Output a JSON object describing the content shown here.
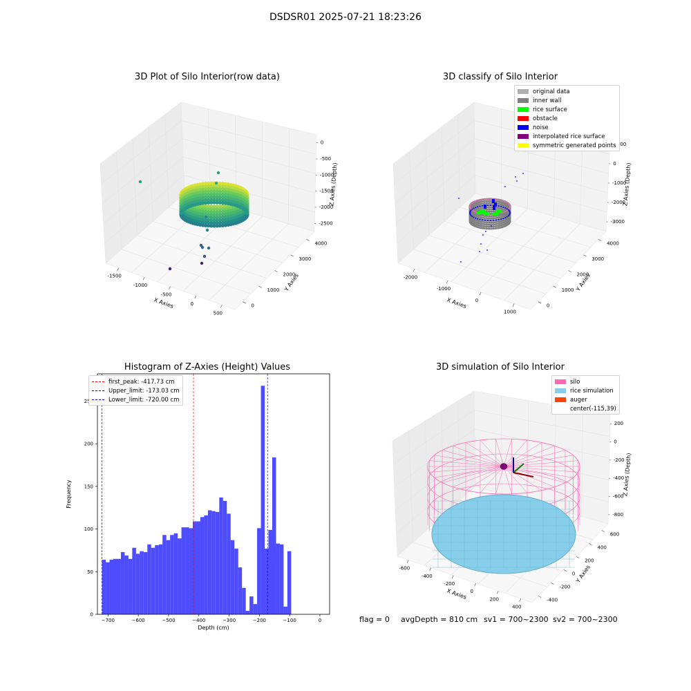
{
  "suptitle": "DSDSR01 2025-07-21 18:23:26",
  "colors": {
    "original_data": "#b0b0b0",
    "inner_wall": "#808080",
    "rice_surface": "#00ff00",
    "obstacle": "#ff0000",
    "noise": "#0000ff",
    "interpolated_rice_surface": "#800080",
    "symmetric_generated_points": "#ffff00",
    "silo": "#ff69b4",
    "rice_simulation": "#87ceeb",
    "auger": "#ff4500",
    "hist_bar": "#4d4dff"
  },
  "chart_data": [
    {
      "type": "scatter",
      "subtype": "3d",
      "title": "3D Plot of Silo Interior(row data)",
      "xlabel": "X Axies",
      "ylabel": "Y Axies",
      "zlabel": "Z Axies (Depth)",
      "xticks": [
        "-1500",
        "-1000",
        "-500",
        "0",
        "500"
      ],
      "yticks": [
        "0",
        "1000",
        "2000",
        "3000",
        "4000"
      ],
      "zticks": [
        "0",
        "-500",
        "-1000",
        "-1500",
        "-2000",
        "-2500"
      ],
      "colormap": "viridis"
    },
    {
      "type": "scatter",
      "subtype": "3d",
      "title": "3D classify of Silo Interior",
      "xlabel": "X Axies",
      "ylabel": "Y Axies",
      "zlabel": "Z Axies (Depth)",
      "xticks": [
        "-2000",
        "-1000",
        "0",
        "1000"
      ],
      "yticks": [
        "0",
        "1000",
        "2000",
        "3000",
        "4000"
      ],
      "zticks": [
        "1000",
        "0",
        "-1000",
        "-2000",
        "-3000"
      ],
      "legend": [
        "original data",
        "inner wall",
        "rice surface",
        "obstacle",
        "noise",
        "interpolated rice surface",
        "symmetric generated points"
      ],
      "legend_position": "top-right"
    },
    {
      "type": "bar",
      "subtype": "histogram",
      "title": "Histogram of Z-Axies (Height) Values",
      "xlabel": "Depth (cm)",
      "ylabel": "Frequency",
      "xlim": [
        -735,
        32
      ],
      "ylim": [
        0,
        282
      ],
      "xticks": [
        -700,
        -600,
        -500,
        -400,
        -300,
        -200,
        -100,
        0
      ],
      "yticks": [
        0,
        50,
        100,
        150,
        200,
        250
      ],
      "bin_start": -720,
      "bin_width": 12.5,
      "values": [
        64,
        61,
        64,
        65,
        65,
        73,
        69,
        65,
        78,
        71,
        74,
        73,
        82,
        78,
        81,
        82,
        93,
        87,
        93,
        95,
        89,
        102,
        102,
        101,
        109,
        109,
        114,
        116,
        122,
        121,
        120,
        137,
        133,
        118,
        87,
        77,
        55,
        31,
        4,
        21,
        12,
        101,
        268,
        77,
        99,
        184,
        83,
        82,
        9,
        74
      ],
      "vlines": [
        {
          "label": "first_peak: -417.73 cm",
          "x": -417.73,
          "color": "#ff0000"
        },
        {
          "label": "Upper_limit: -173.03 cm",
          "x": -173.03,
          "color": "#0000ff"
        },
        {
          "label": "Lower_limit: -720.00 cm",
          "x": -720.0,
          "color": "#0000ff"
        }
      ],
      "legend_position": "top-left"
    },
    {
      "type": "scatter",
      "subtype": "3d-surface",
      "title": "3D simulation of Silo Interior",
      "xlabel": "X Axies",
      "ylabel": "Y Axies",
      "zlabel": "Z Axies (Depth)",
      "xticks": [
        "-600",
        "-400",
        "-200",
        "0",
        "200",
        "400"
      ],
      "yticks": [
        "-400",
        "-200",
        "0",
        "200",
        "400",
        "600"
      ],
      "zticks": [
        "200",
        "0",
        "-200",
        "-400",
        "-600",
        "-800"
      ],
      "legend": [
        "silo",
        "rice simulation",
        "auger",
        "center(-115,39)"
      ],
      "legend_position": "top-right"
    }
  ],
  "status": {
    "flag": "flag = 0",
    "avg_depth": "avgDepth = 810 cm",
    "sv1": "sv1 = 700~2300",
    "sv2": "sv2 = 700~2300"
  }
}
